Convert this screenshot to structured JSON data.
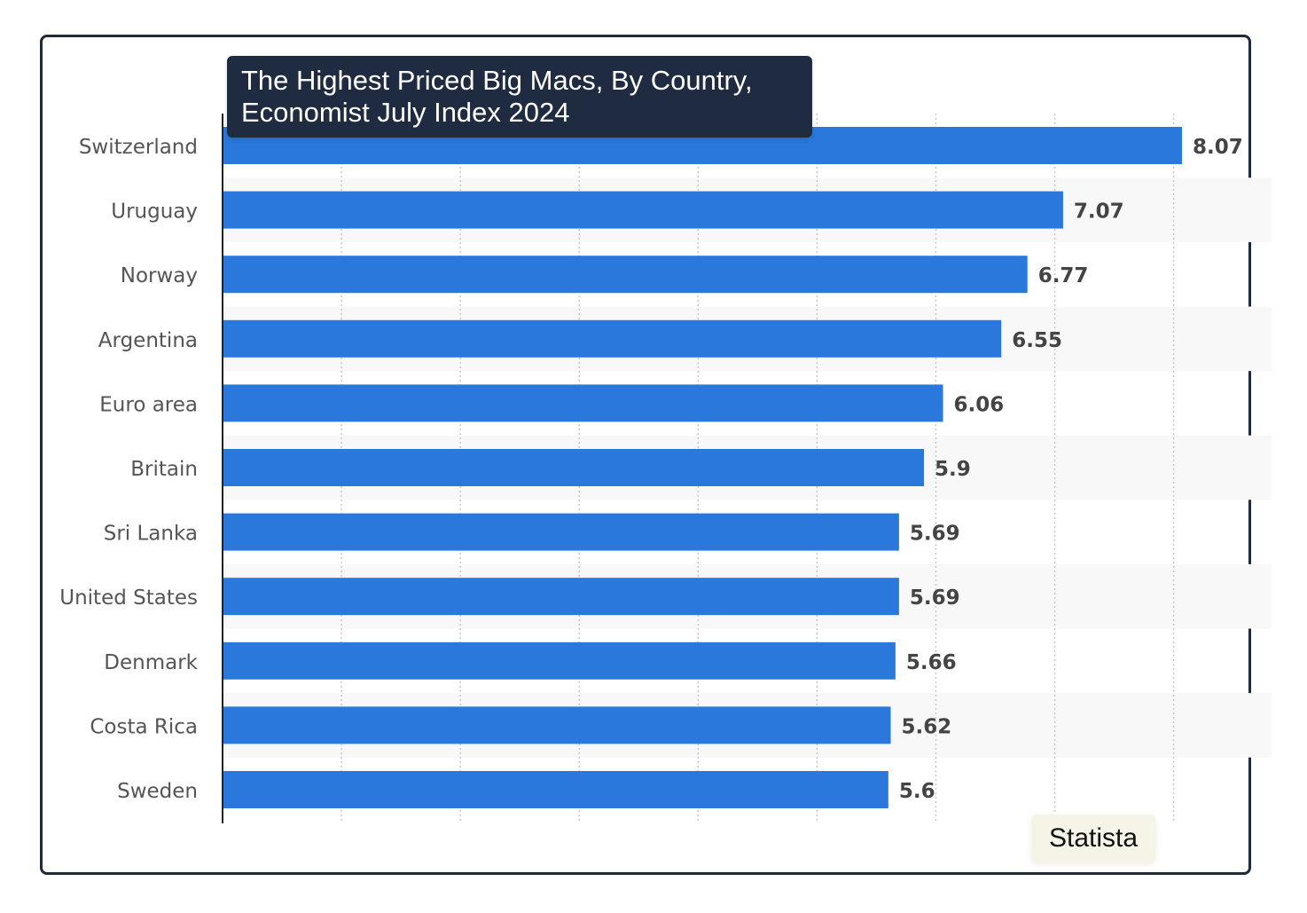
{
  "chart_data": {
    "type": "bar",
    "orientation": "horizontal",
    "title": "The Highest Priced Big Macs, By Country, Economist July Index 2024",
    "title_lines": [
      "The Highest Priced Big Macs, By Country,",
      "Economist July Index 2024"
    ],
    "categories": [
      "Switzerland",
      "Uruguay",
      "Norway",
      "Argentina",
      "Euro area",
      "Britain",
      "Sri Lanka",
      "United States",
      "Denmark",
      "Costa Rica",
      "Sweden"
    ],
    "values": [
      8.07,
      7.07,
      6.77,
      6.55,
      6.06,
      5.9,
      5.69,
      5.69,
      5.66,
      5.62,
      5.6
    ],
    "value_labels": [
      "8.07",
      "7.07",
      "6.77",
      "6.55",
      "6.06",
      "5.9",
      "5.69",
      "5.69",
      "5.66",
      "5.62",
      "5.6"
    ],
    "xlim": [
      0,
      8.8
    ],
    "grid_step": 1,
    "grid": true,
    "xlabel": "",
    "ylabel": "",
    "bar_color": "#2a78dc",
    "stripe_color": "#f8f8f8",
    "label_color": "#555555",
    "value_label_color": "#444444"
  },
  "source": "Statista"
}
